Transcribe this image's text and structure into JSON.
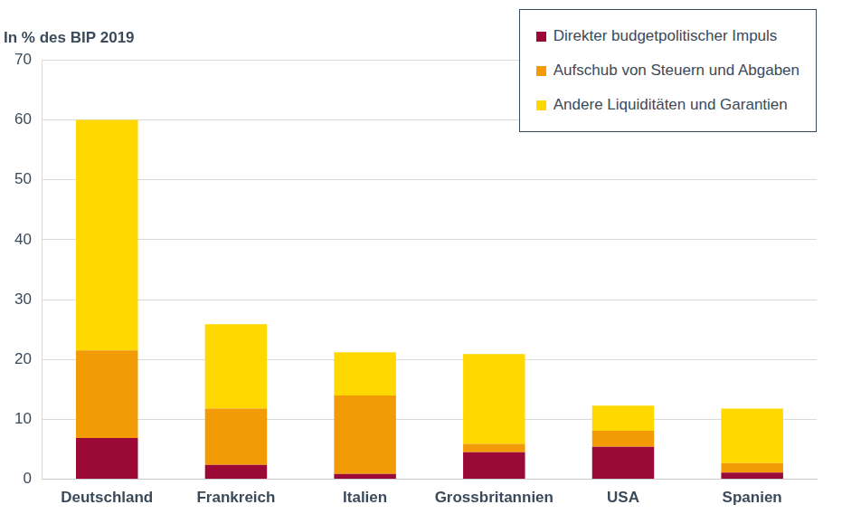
{
  "chart_data": {
    "type": "bar",
    "y_label": "In % des BIP 2019",
    "categories": [
      "Deutschland",
      "Frankreich",
      "Italien",
      "Grossbritannien",
      "USA",
      "Spanien"
    ],
    "series": [
      {
        "name": "Direkter budgetpolitischer Impuls",
        "color": "#9b0a36",
        "values": [
          6.9,
          2.4,
          0.9,
          4.5,
          5.4,
          1.1
        ]
      },
      {
        "name": "Aufschub von Steuern und Abgaben",
        "color": "#f29b05",
        "values": [
          14.6,
          9.4,
          13.1,
          1.4,
          2.7,
          1.6
        ]
      },
      {
        "name": "Andere Liquiditäten und Garantien",
        "color": "#ffd800",
        "values": [
          38.5,
          14.1,
          7.2,
          15.0,
          4.2,
          9.1
        ]
      }
    ],
    "stacked": true,
    "ylim": [
      0,
      70
    ],
    "yticks": [
      0,
      10,
      20,
      30,
      40,
      50,
      60,
      70
    ],
    "grid": true,
    "legend": "top right"
  }
}
